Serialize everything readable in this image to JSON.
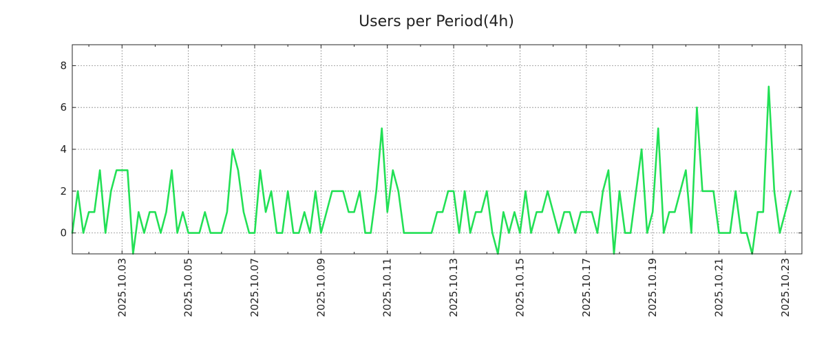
{
  "chart_data": {
    "type": "line",
    "title": "Users per Period(4h)",
    "xlabel": "",
    "ylabel": "",
    "ylim": [
      -1,
      9
    ],
    "yticks": [
      0,
      2,
      4,
      6,
      8
    ],
    "grid": true,
    "period_hours": 4,
    "x_start": "2025.10.01 12:00",
    "x_range_days": [
      0.5,
      22.5
    ],
    "xtick_labels": [
      "2025.10.03",
      "2025.10.05",
      "2025.10.07",
      "2025.10.09",
      "2025.10.11",
      "2025.10.13",
      "2025.10.15",
      "2025.10.17",
      "2025.10.19",
      "2025.10.21",
      "2025.10.23"
    ],
    "xtick_days": [
      2,
      4,
      6,
      8,
      10,
      12,
      14,
      16,
      18,
      20,
      22
    ],
    "series": [
      {
        "name": "Users",
        "color": "#22e055",
        "values": [
          0,
          2,
          0,
          1,
          1,
          3,
          0,
          2,
          3,
          3,
          3,
          -1,
          1,
          0,
          1,
          1,
          0,
          1,
          3,
          0,
          1,
          0,
          0,
          0,
          1,
          0,
          0,
          0,
          1,
          4,
          3,
          1,
          0,
          0,
          3,
          1,
          2,
          0,
          0,
          2,
          0,
          0,
          1,
          0,
          2,
          0,
          1,
          2,
          2,
          2,
          1,
          1,
          2,
          0,
          0,
          2,
          5,
          1,
          3,
          2,
          0,
          0,
          0,
          0,
          0,
          0,
          1,
          1,
          2,
          2,
          0,
          2,
          0,
          1,
          1,
          2,
          0,
          -1,
          1,
          0,
          1,
          0,
          2,
          0,
          1,
          1,
          2,
          1,
          0,
          1,
          1,
          0,
          1,
          1,
          1,
          0,
          2,
          3,
          -1,
          2,
          0,
          0,
          2,
          4,
          0,
          1,
          5,
          0,
          1,
          1,
          2,
          3,
          0,
          6,
          2,
          2,
          2,
          0,
          0,
          0,
          2,
          0,
          0,
          -1,
          1,
          1,
          7,
          2,
          0,
          1,
          2
        ]
      }
    ]
  }
}
